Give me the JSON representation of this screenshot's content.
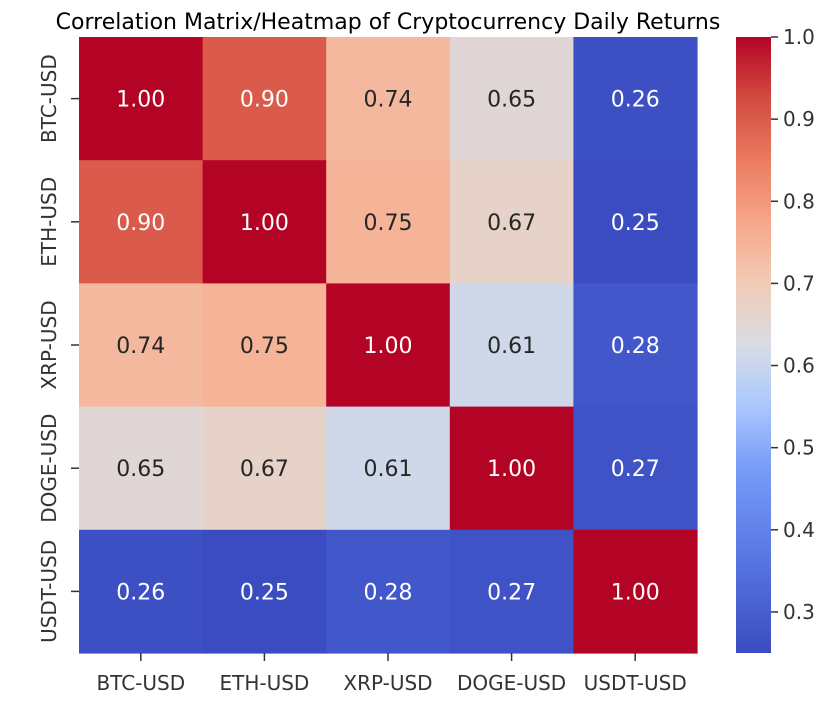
{
  "chart_data": {
    "type": "heatmap",
    "title": "Correlation Matrix/Heatmap of Cryptocurrency Daily Returns",
    "x_labels": [
      "BTC-USD",
      "ETH-USD",
      "XRP-USD",
      "DOGE-USD",
      "USDT-USD"
    ],
    "y_labels": [
      "BTC-USD",
      "ETH-USD",
      "XRP-USD",
      "DOGE-USD",
      "USDT-USD"
    ],
    "values": [
      [
        1.0,
        0.9,
        0.74,
        0.65,
        0.26
      ],
      [
        0.9,
        1.0,
        0.75,
        0.67,
        0.25
      ],
      [
        0.74,
        0.75,
        1.0,
        0.61,
        0.28
      ],
      [
        0.65,
        0.67,
        0.61,
        1.0,
        0.27
      ],
      [
        0.26,
        0.25,
        0.28,
        0.27,
        1.0
      ]
    ],
    "value_format": "0.00",
    "colormap": "coolwarm",
    "colorbar": {
      "range": [
        0.25,
        1.0
      ],
      "ticks": [
        0.3,
        0.4,
        0.5,
        0.6,
        0.7,
        0.8,
        0.9,
        1.0
      ],
      "tick_labels": [
        "0.3",
        "0.4",
        "0.5",
        "0.6",
        "0.7",
        "0.8",
        "0.9",
        "1.0"
      ]
    }
  }
}
